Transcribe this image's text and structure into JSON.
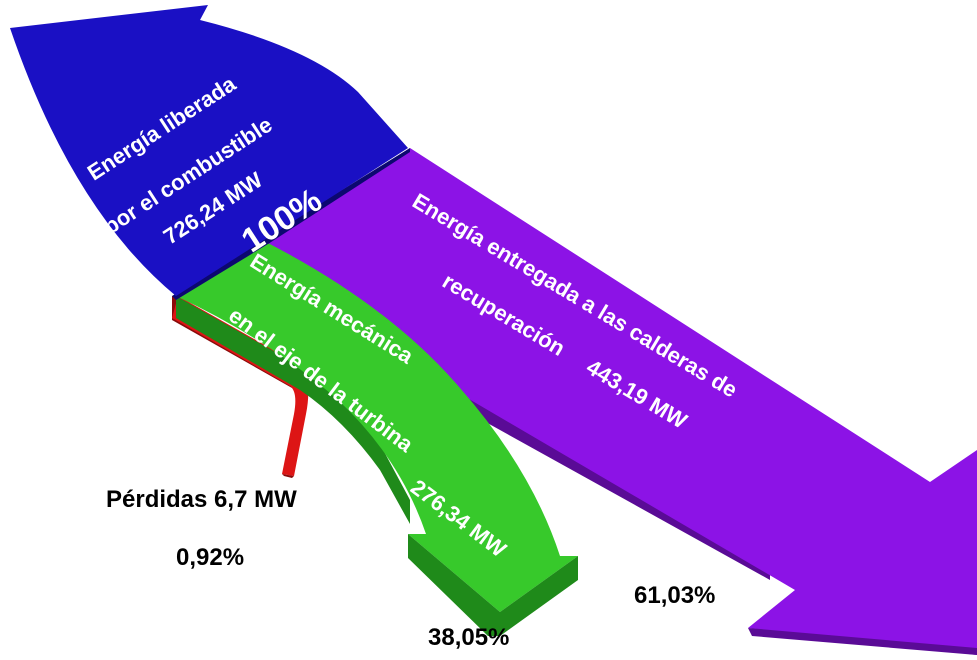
{
  "colors": {
    "input": "#1a10c4",
    "recovery": "#8c13e6",
    "mechanical": "#37c92b",
    "losses": "#dd1515"
  },
  "input_flow": {
    "line1": "Energía liberada",
    "line2": "por el combustible",
    "value": "726,24 MW",
    "percent": "100%"
  },
  "recovery_flow": {
    "line1": "Energía entregada a las calderas de",
    "line2": "recuperación",
    "value": "443,19 MW",
    "percent": "61,03%"
  },
  "mechanical_flow": {
    "line1": "Energía mecánica",
    "line2": "en el eje de la turbina",
    "value": "276,34 MW",
    "percent": "38,05%"
  },
  "losses_flow": {
    "label": "Pérdidas 6,7 MW",
    "percent": "0,92%"
  }
}
